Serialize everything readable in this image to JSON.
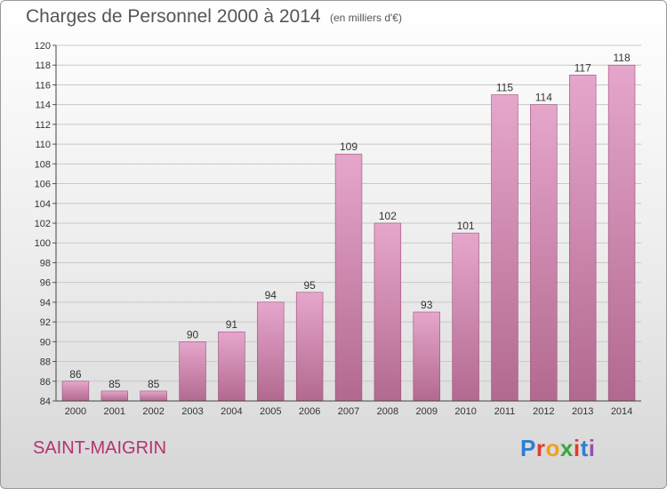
{
  "header": {
    "title": "Charges de Personnel 2000 à 2014",
    "subtitle": "(en milliers d'€)"
  },
  "footer": {
    "commune": "SAINT-MAIGRIN",
    "logo": "Proxiti",
    "logo_colors": [
      "#2d7fd1",
      "#e03b2e",
      "#f0a020",
      "#3aa640",
      "#e03b2e",
      "#2d7fd1",
      "#9b4fb0"
    ]
  },
  "colors": {
    "bar_top": "#e6a6cc",
    "bar_bottom": "#b2698f",
    "bar_edge": "#9c4f78",
    "grid": "#c8c8c8"
  },
  "chart_data": {
    "type": "bar",
    "title": "Charges de Personnel 2000 à 2014",
    "subtitle": "(en milliers d'€)",
    "categories": [
      "2000",
      "2001",
      "2002",
      "2003",
      "2004",
      "2005",
      "2006",
      "2007",
      "2008",
      "2009",
      "2010",
      "2011",
      "2012",
      "2013",
      "2014"
    ],
    "values": [
      86,
      85,
      85,
      90,
      91,
      94,
      95,
      109,
      102,
      93,
      101,
      115,
      114,
      117,
      118
    ],
    "ylim": [
      84,
      120
    ],
    "ytick_step": 2,
    "grid": true,
    "legend": "none"
  }
}
